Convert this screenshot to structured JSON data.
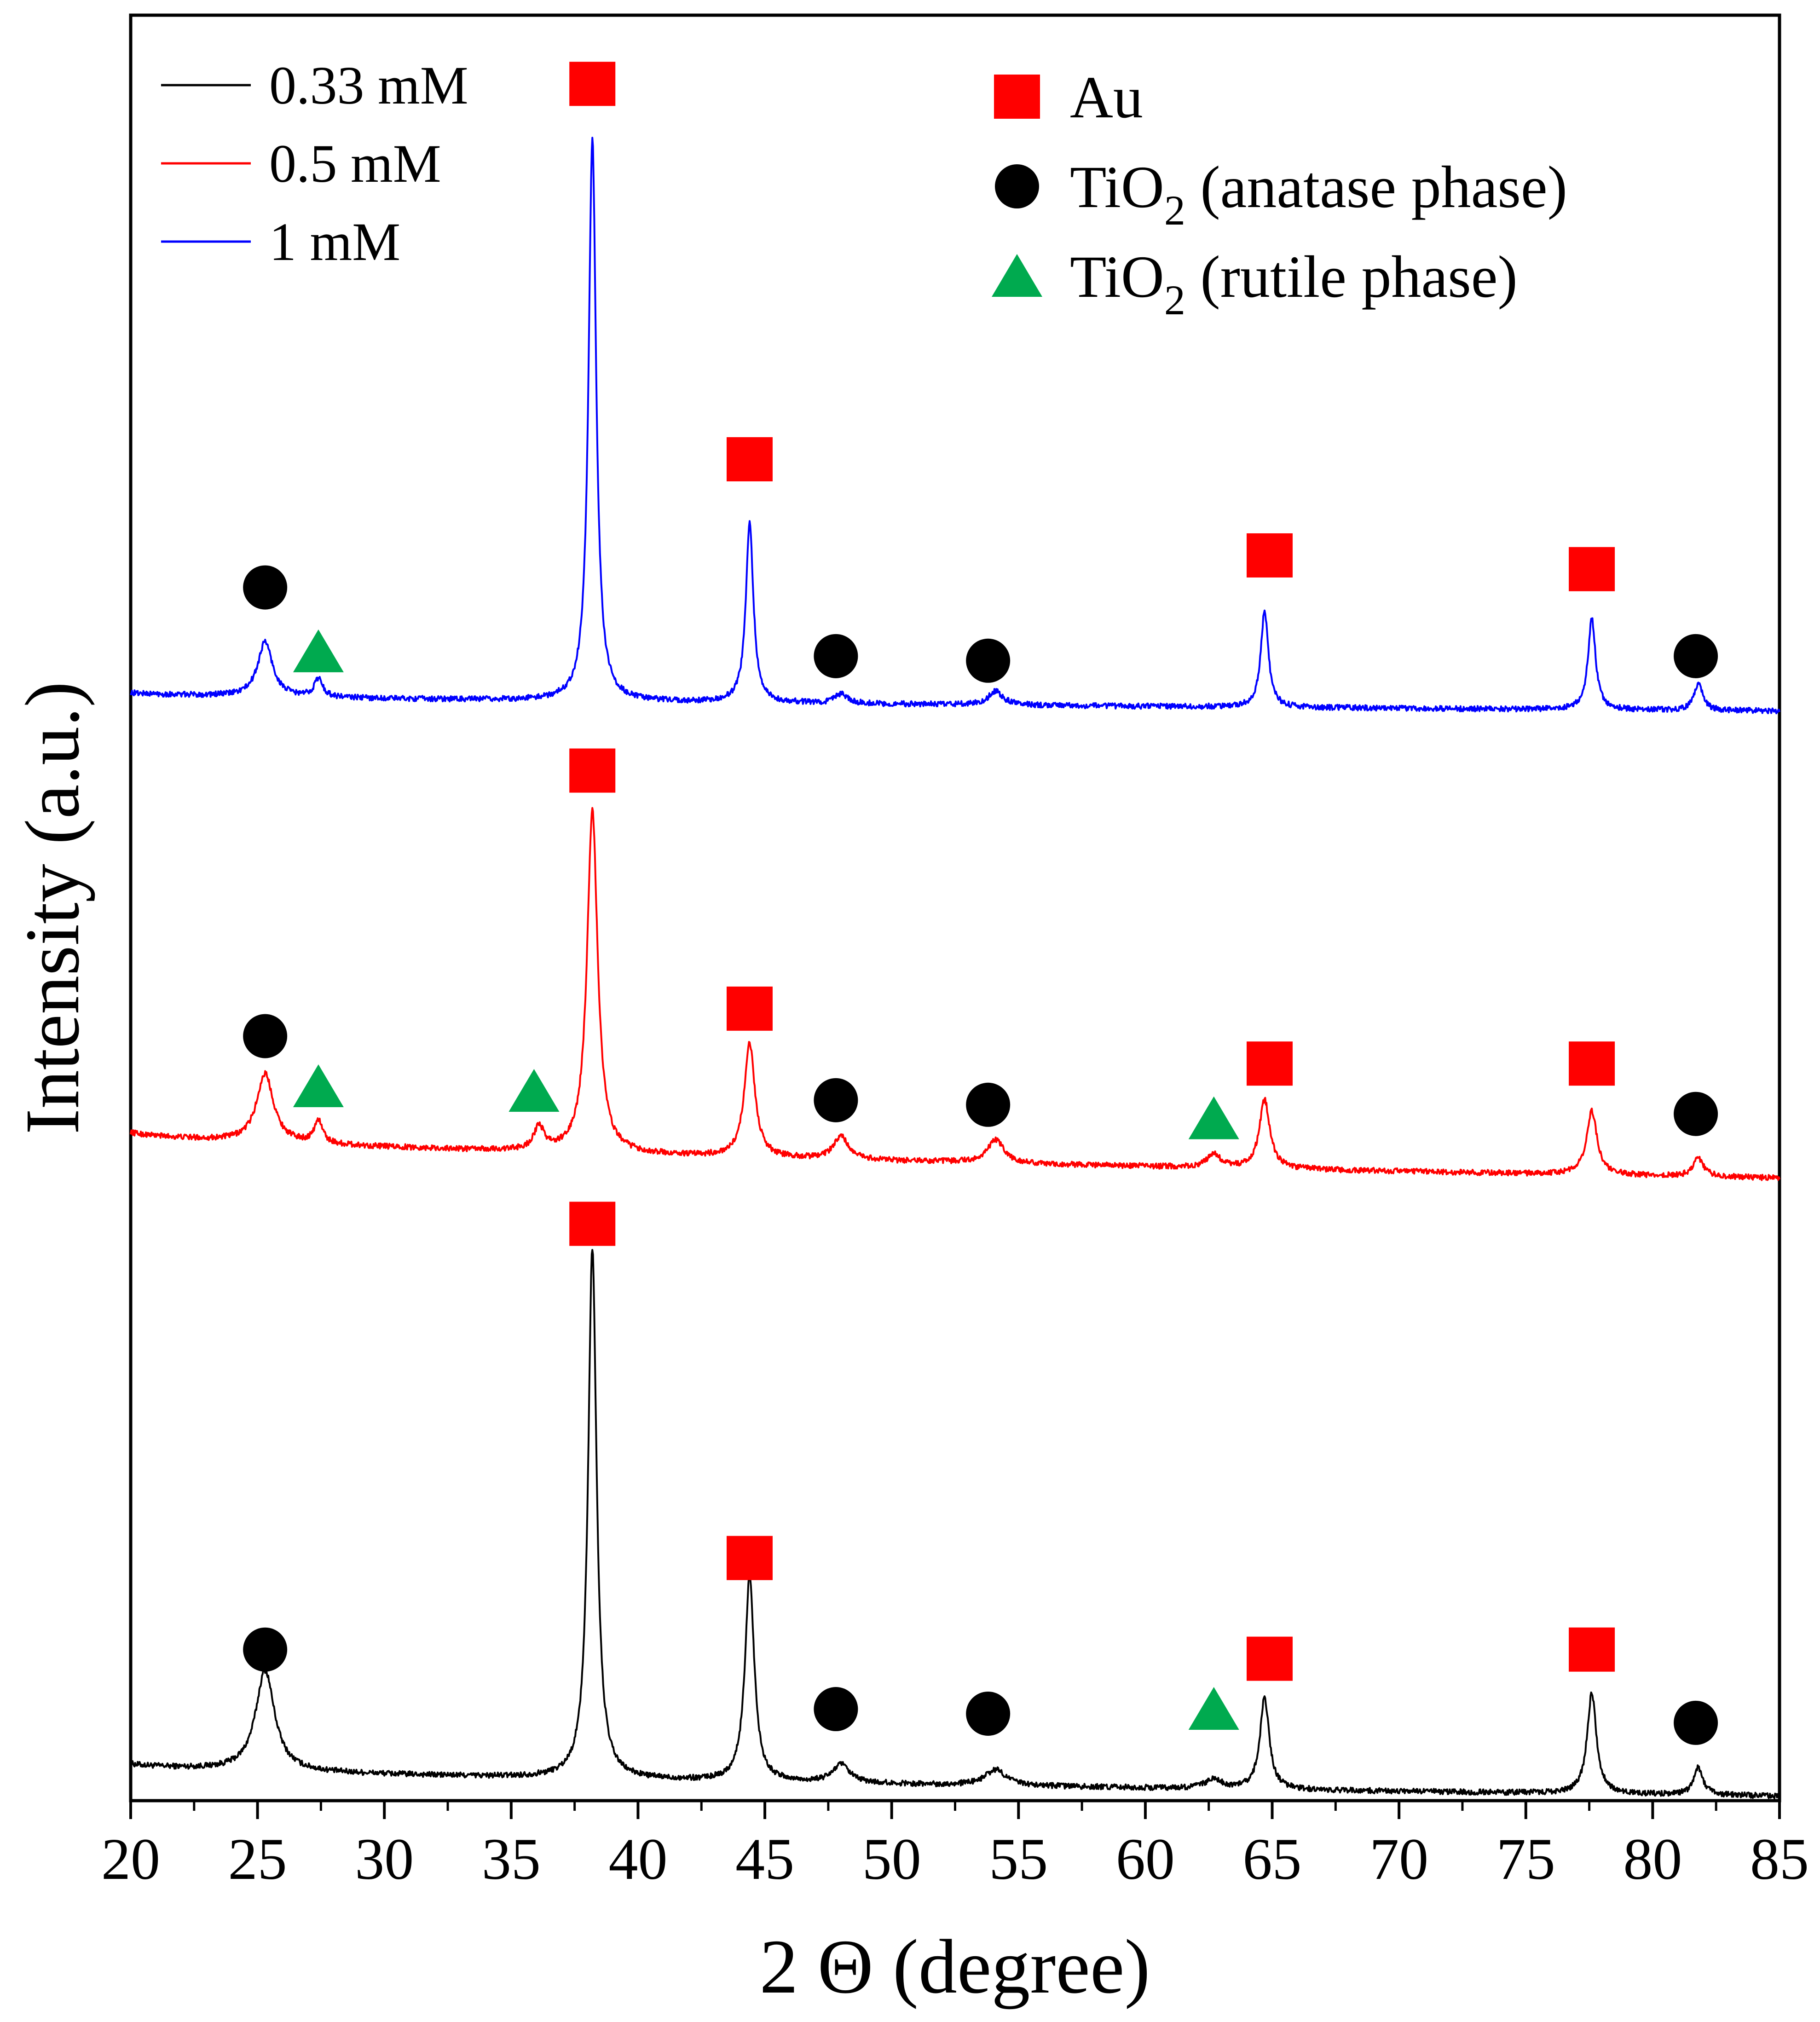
{
  "chart_data": {
    "type": "line",
    "title": "",
    "xlabel": "2 Θ (degree)",
    "ylabel": "Intensity (a.u.)",
    "xlim": [
      20,
      85
    ],
    "xticks": [
      "20",
      "25",
      "30",
      "35",
      "40",
      "45",
      "50",
      "55",
      "60",
      "65",
      "70",
      "75",
      "80",
      "85"
    ],
    "ylim": [
      0,
      3.9
    ],
    "y_tick_labels_shown": false,
    "series_legend": [
      {
        "name": "0.33 mM",
        "color": "#000000"
      },
      {
        "name": "0.5 mM",
        "color": "#ff0000"
      },
      {
        "name": "1 mM",
        "color": "#0000ff"
      }
    ],
    "phase_legend": [
      {
        "symbol": "square",
        "color": "#ff0000",
        "label": "Au",
        "sub": "",
        "suffix": ""
      },
      {
        "symbol": "circle",
        "color": "#000000",
        "label": "TiO",
        "sub": "2",
        "suffix": " (anatase phase)"
      },
      {
        "symbol": "triangle",
        "color": "#00aa4f",
        "label": "TiO",
        "sub": "2",
        "suffix": " (rutile phase)"
      }
    ],
    "series": [
      {
        "name": "0.33 mM",
        "color": "#000000",
        "baseline_start": 0.08,
        "baseline_end": 0.01,
        "peaks": [
          {
            "x": 25.3,
            "height": 0.22,
            "width": 0.45
          },
          {
            "x": 38.2,
            "height": 1.16,
            "width": 0.2
          },
          {
            "x": 44.4,
            "height": 0.45,
            "width": 0.22
          },
          {
            "x": 48.0,
            "height": 0.04,
            "width": 0.4
          },
          {
            "x": 54.1,
            "height": 0.035,
            "width": 0.5
          },
          {
            "x": 62.7,
            "height": 0.02,
            "width": 0.4
          },
          {
            "x": 64.7,
            "height": 0.2,
            "width": 0.22
          },
          {
            "x": 77.6,
            "height": 0.22,
            "width": 0.22
          },
          {
            "x": 81.8,
            "height": 0.06,
            "width": 0.22
          }
        ],
        "markers": [
          {
            "type": "circle",
            "x": 25.3,
            "y": 0.33
          },
          {
            "type": "square",
            "x": 38.2,
            "y": 1.26
          },
          {
            "type": "square",
            "x": 44.4,
            "y": 0.53
          },
          {
            "type": "circle",
            "x": 47.8,
            "y": 0.2
          },
          {
            "type": "circle",
            "x": 53.8,
            "y": 0.19
          },
          {
            "type": "triangle",
            "x": 62.7,
            "y": 0.2
          },
          {
            "type": "square",
            "x": 64.9,
            "y": 0.31
          },
          {
            "type": "square",
            "x": 77.6,
            "y": 0.33
          },
          {
            "type": "circle",
            "x": 81.7,
            "y": 0.17
          }
        ]
      },
      {
        "name": "0.5 mM",
        "color": "#ff0000",
        "baseline_start": 1.46,
        "baseline_end": 1.36,
        "peaks": [
          {
            "x": 25.3,
            "height": 0.15,
            "width": 0.4
          },
          {
            "x": 27.4,
            "height": 0.05,
            "width": 0.2
          },
          {
            "x": 36.1,
            "height": 0.05,
            "width": 0.25
          },
          {
            "x": 38.2,
            "height": 0.75,
            "width": 0.25
          },
          {
            "x": 44.4,
            "height": 0.25,
            "width": 0.25
          },
          {
            "x": 48.0,
            "height": 0.05,
            "width": 0.35
          },
          {
            "x": 54.1,
            "height": 0.05,
            "width": 0.4
          },
          {
            "x": 62.7,
            "height": 0.03,
            "width": 0.3
          },
          {
            "x": 64.7,
            "height": 0.15,
            "width": 0.25
          },
          {
            "x": 77.6,
            "height": 0.14,
            "width": 0.25
          },
          {
            "x": 81.8,
            "height": 0.04,
            "width": 0.25
          }
        ],
        "markers": [
          {
            "type": "circle",
            "x": 25.3,
            "y": 1.67
          },
          {
            "type": "triangle",
            "x": 27.4,
            "y": 1.56
          },
          {
            "type": "triangle",
            "x": 35.9,
            "y": 1.55
          },
          {
            "type": "square",
            "x": 38.2,
            "y": 2.25
          },
          {
            "type": "square",
            "x": 44.4,
            "y": 1.73
          },
          {
            "type": "circle",
            "x": 47.8,
            "y": 1.53
          },
          {
            "type": "circle",
            "x": 53.8,
            "y": 1.52
          },
          {
            "type": "triangle",
            "x": 62.7,
            "y": 1.49
          },
          {
            "type": "square",
            "x": 64.9,
            "y": 1.61
          },
          {
            "type": "square",
            "x": 77.6,
            "y": 1.61
          },
          {
            "type": "circle",
            "x": 81.7,
            "y": 1.5
          }
        ]
      },
      {
        "name": "1 mM",
        "color": "#0000ff",
        "baseline_start": 2.42,
        "baseline_end": 2.38,
        "peaks": [
          {
            "x": 25.3,
            "height": 0.12,
            "width": 0.35
          },
          {
            "x": 27.4,
            "height": 0.04,
            "width": 0.2
          },
          {
            "x": 38.2,
            "height": 1.23,
            "width": 0.18
          },
          {
            "x": 44.4,
            "height": 0.39,
            "width": 0.18
          },
          {
            "x": 48.0,
            "height": 0.02,
            "width": 0.3
          },
          {
            "x": 54.1,
            "height": 0.03,
            "width": 0.35
          },
          {
            "x": 64.7,
            "height": 0.21,
            "width": 0.18
          },
          {
            "x": 77.6,
            "height": 0.2,
            "width": 0.18
          },
          {
            "x": 81.8,
            "height": 0.06,
            "width": 0.2
          }
        ],
        "markers": [
          {
            "type": "circle",
            "x": 25.3,
            "y": 2.65
          },
          {
            "type": "triangle",
            "x": 27.4,
            "y": 2.51
          },
          {
            "type": "square",
            "x": 38.2,
            "y": 3.75
          },
          {
            "type": "square",
            "x": 44.4,
            "y": 2.93
          },
          {
            "type": "circle",
            "x": 47.8,
            "y": 2.5
          },
          {
            "type": "circle",
            "x": 53.8,
            "y": 2.49
          },
          {
            "type": "square",
            "x": 64.9,
            "y": 2.72
          },
          {
            "type": "square",
            "x": 77.6,
            "y": 2.69
          },
          {
            "type": "circle",
            "x": 81.7,
            "y": 2.5
          }
        ]
      }
    ]
  }
}
